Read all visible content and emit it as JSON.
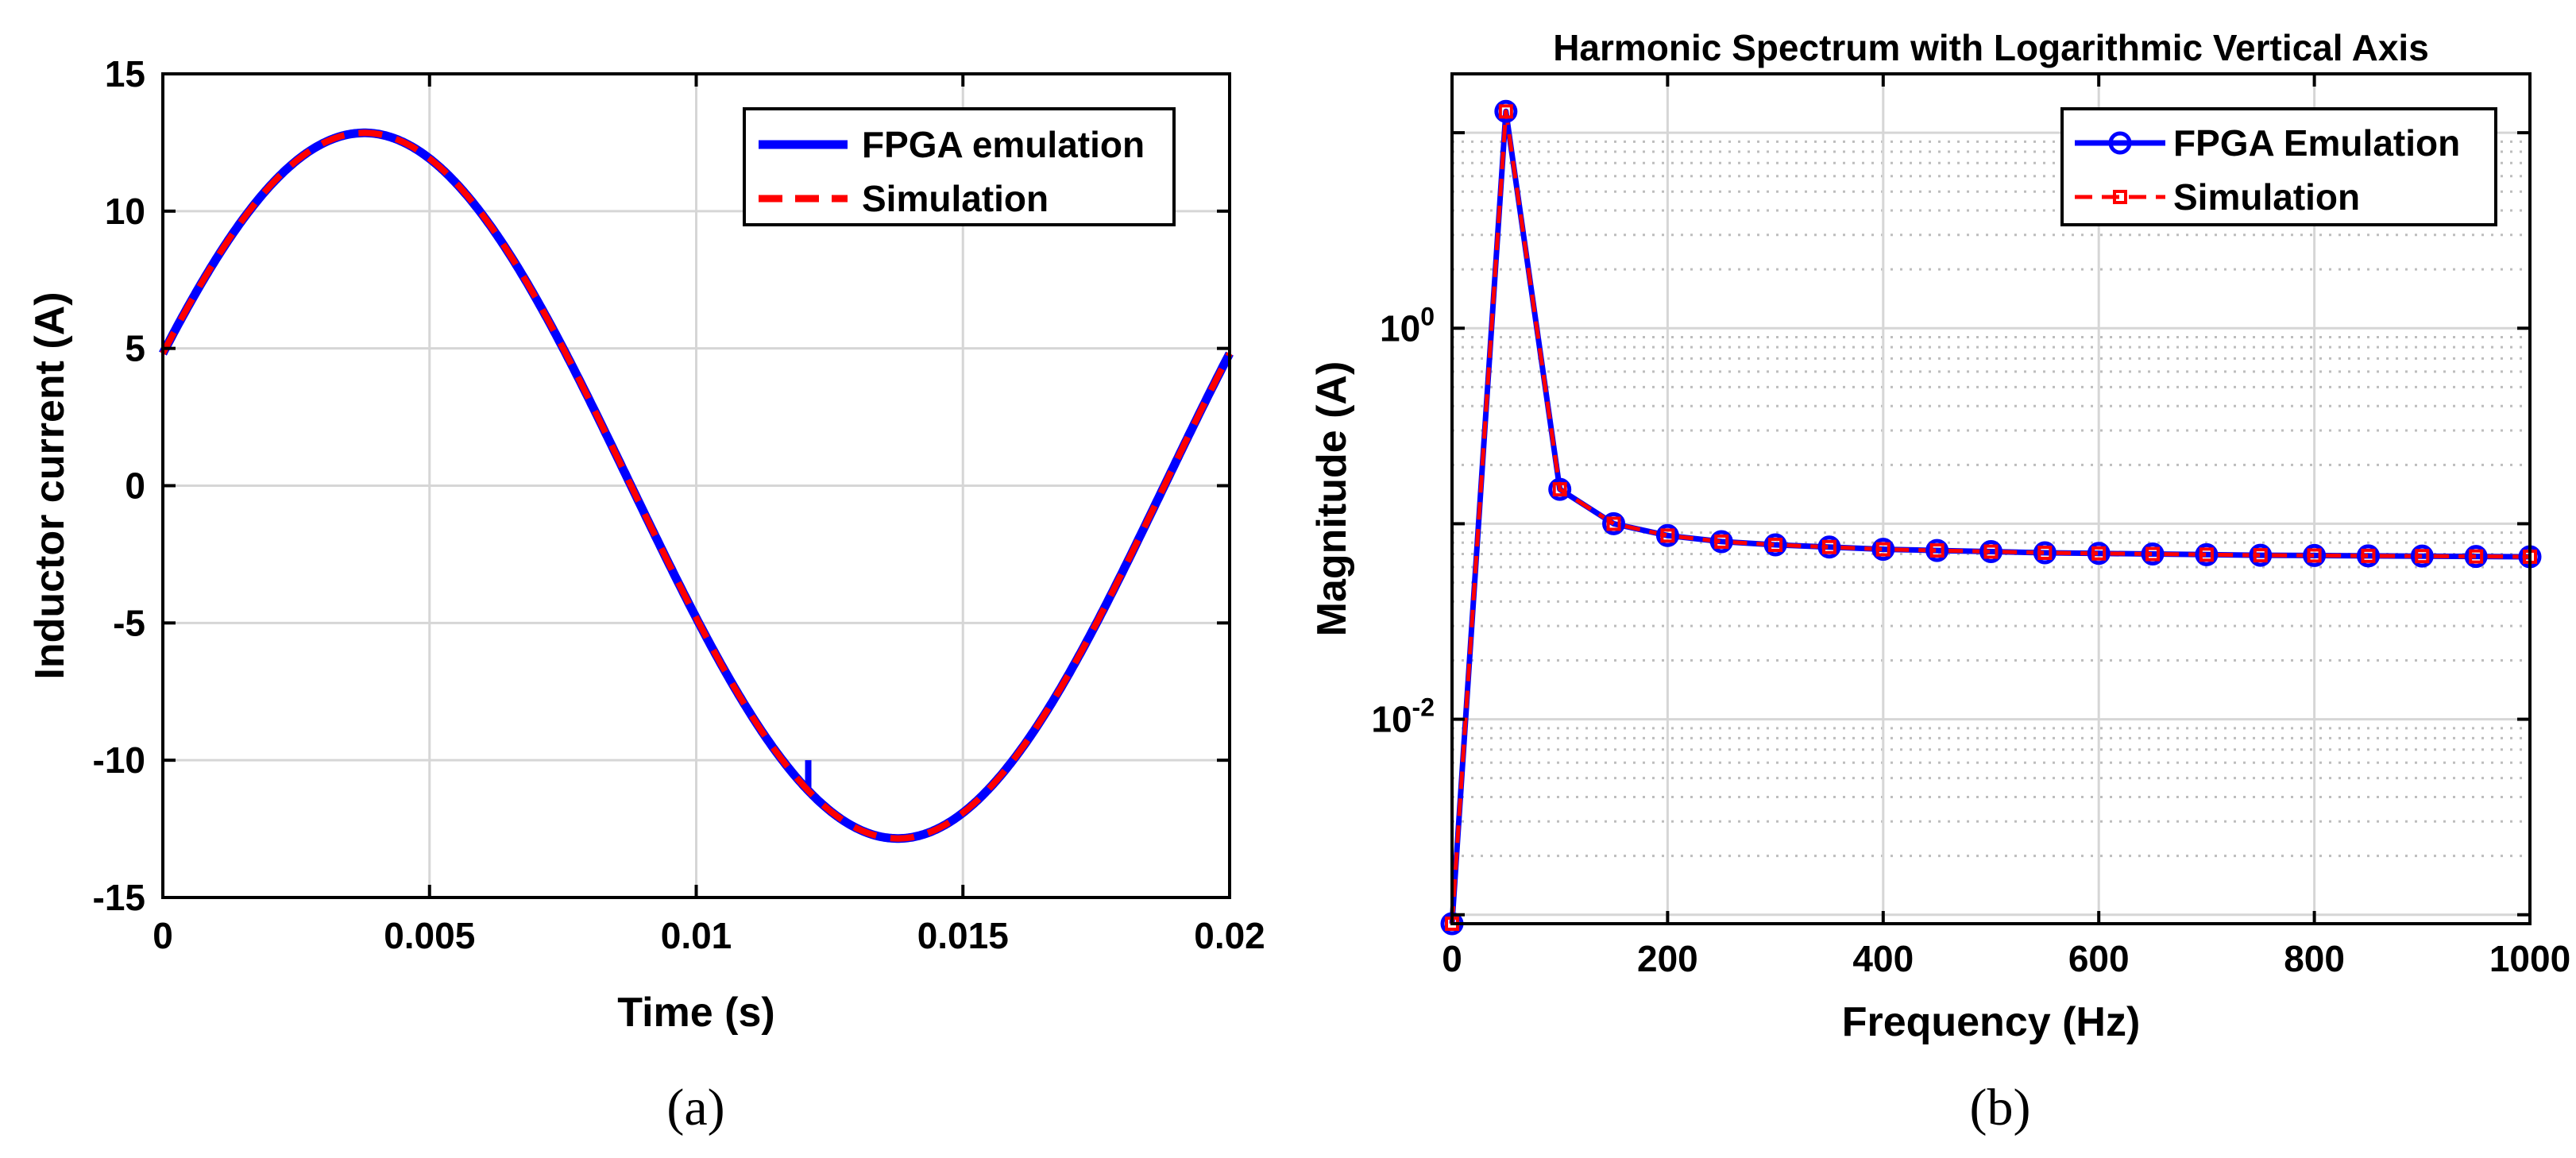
{
  "chart_data": [
    {
      "type": "line",
      "panel": "(a)",
      "title": "",
      "xlabel": "Time (s)",
      "ylabel": "Inductor current (A)",
      "xlim": [
        0,
        0.02
      ],
      "ylim": [
        -15,
        15
      ],
      "xticks": [
        0,
        0.005,
        0.01,
        0.015,
        0.02
      ],
      "xtick_labels": [
        "0",
        "0.005",
        "0.01",
        "0.015",
        "0.02"
      ],
      "yticks": [
        15,
        10,
        5,
        0,
        -5,
        -10,
        -15
      ],
      "ytick_labels": [
        "15",
        "10",
        "5",
        "0",
        "-5",
        "-10",
        "-15"
      ],
      "grid": true,
      "legend": {
        "position": "top-right",
        "entries": [
          "FPGA emulation",
          "Simulation"
        ]
      },
      "series": [
        {
          "name": "FPGA emulation",
          "color": "#0000ff",
          "style": "solid",
          "function": "sine",
          "amplitude": 12.85,
          "frequency_hz": 50,
          "phase_deg": 22,
          "glitch": {
            "x": 0.0121,
            "y_from": -11.0,
            "y_to": -10.0
          }
        },
        {
          "name": "Simulation",
          "color": "#ff0000",
          "style": "dashed",
          "function": "sine",
          "amplitude": 12.85,
          "frequency_hz": 50,
          "phase_deg": 22
        }
      ]
    },
    {
      "type": "line",
      "panel": "(b)",
      "title": "Harmonic Spectrum with Logarithmic Vertical Axis",
      "xlabel": "Frequency (Hz)",
      "ylabel": "Magnitude (A)",
      "xlim": [
        0,
        1000
      ],
      "yscale": "log",
      "ylim": [
        0.0009,
        20
      ],
      "xticks": [
        0,
        200,
        400,
        600,
        800,
        1000
      ],
      "xtick_labels": [
        "0",
        "200",
        "400",
        "600",
        "800",
        "1000"
      ],
      "ytick_labels": [
        {
          "value": 1,
          "base": "10",
          "exponent": "0"
        },
        {
          "value": 0.01,
          "base": "10",
          "exponent": "-2"
        }
      ],
      "grid": true,
      "legend": {
        "position": "top-right",
        "entries": [
          "FPGA Emulation",
          "Simulation"
        ]
      },
      "x": [
        0,
        50,
        100,
        150,
        200,
        250,
        300,
        350,
        400,
        450,
        500,
        550,
        600,
        650,
        700,
        750,
        800,
        850,
        900,
        950,
        1000
      ],
      "series": [
        {
          "name": "FPGA Emulation",
          "color": "#0000ff",
          "marker": "circle",
          "style": "solid",
          "values": [
            0.0009,
            12.85,
            0.15,
            0.1,
            0.087,
            0.081,
            0.078,
            0.076,
            0.074,
            0.073,
            0.072,
            0.071,
            0.0705,
            0.07,
            0.0695,
            0.069,
            0.0688,
            0.0685,
            0.0683,
            0.068,
            0.0678
          ]
        },
        {
          "name": "Simulation",
          "color": "#ff0000",
          "marker": "square",
          "style": "dashed",
          "values": [
            0.0009,
            12.85,
            0.15,
            0.1,
            0.087,
            0.081,
            0.078,
            0.076,
            0.074,
            0.073,
            0.072,
            0.071,
            0.0705,
            0.07,
            0.0695,
            0.069,
            0.0688,
            0.0685,
            0.0683,
            0.068,
            0.0678
          ]
        }
      ]
    }
  ]
}
